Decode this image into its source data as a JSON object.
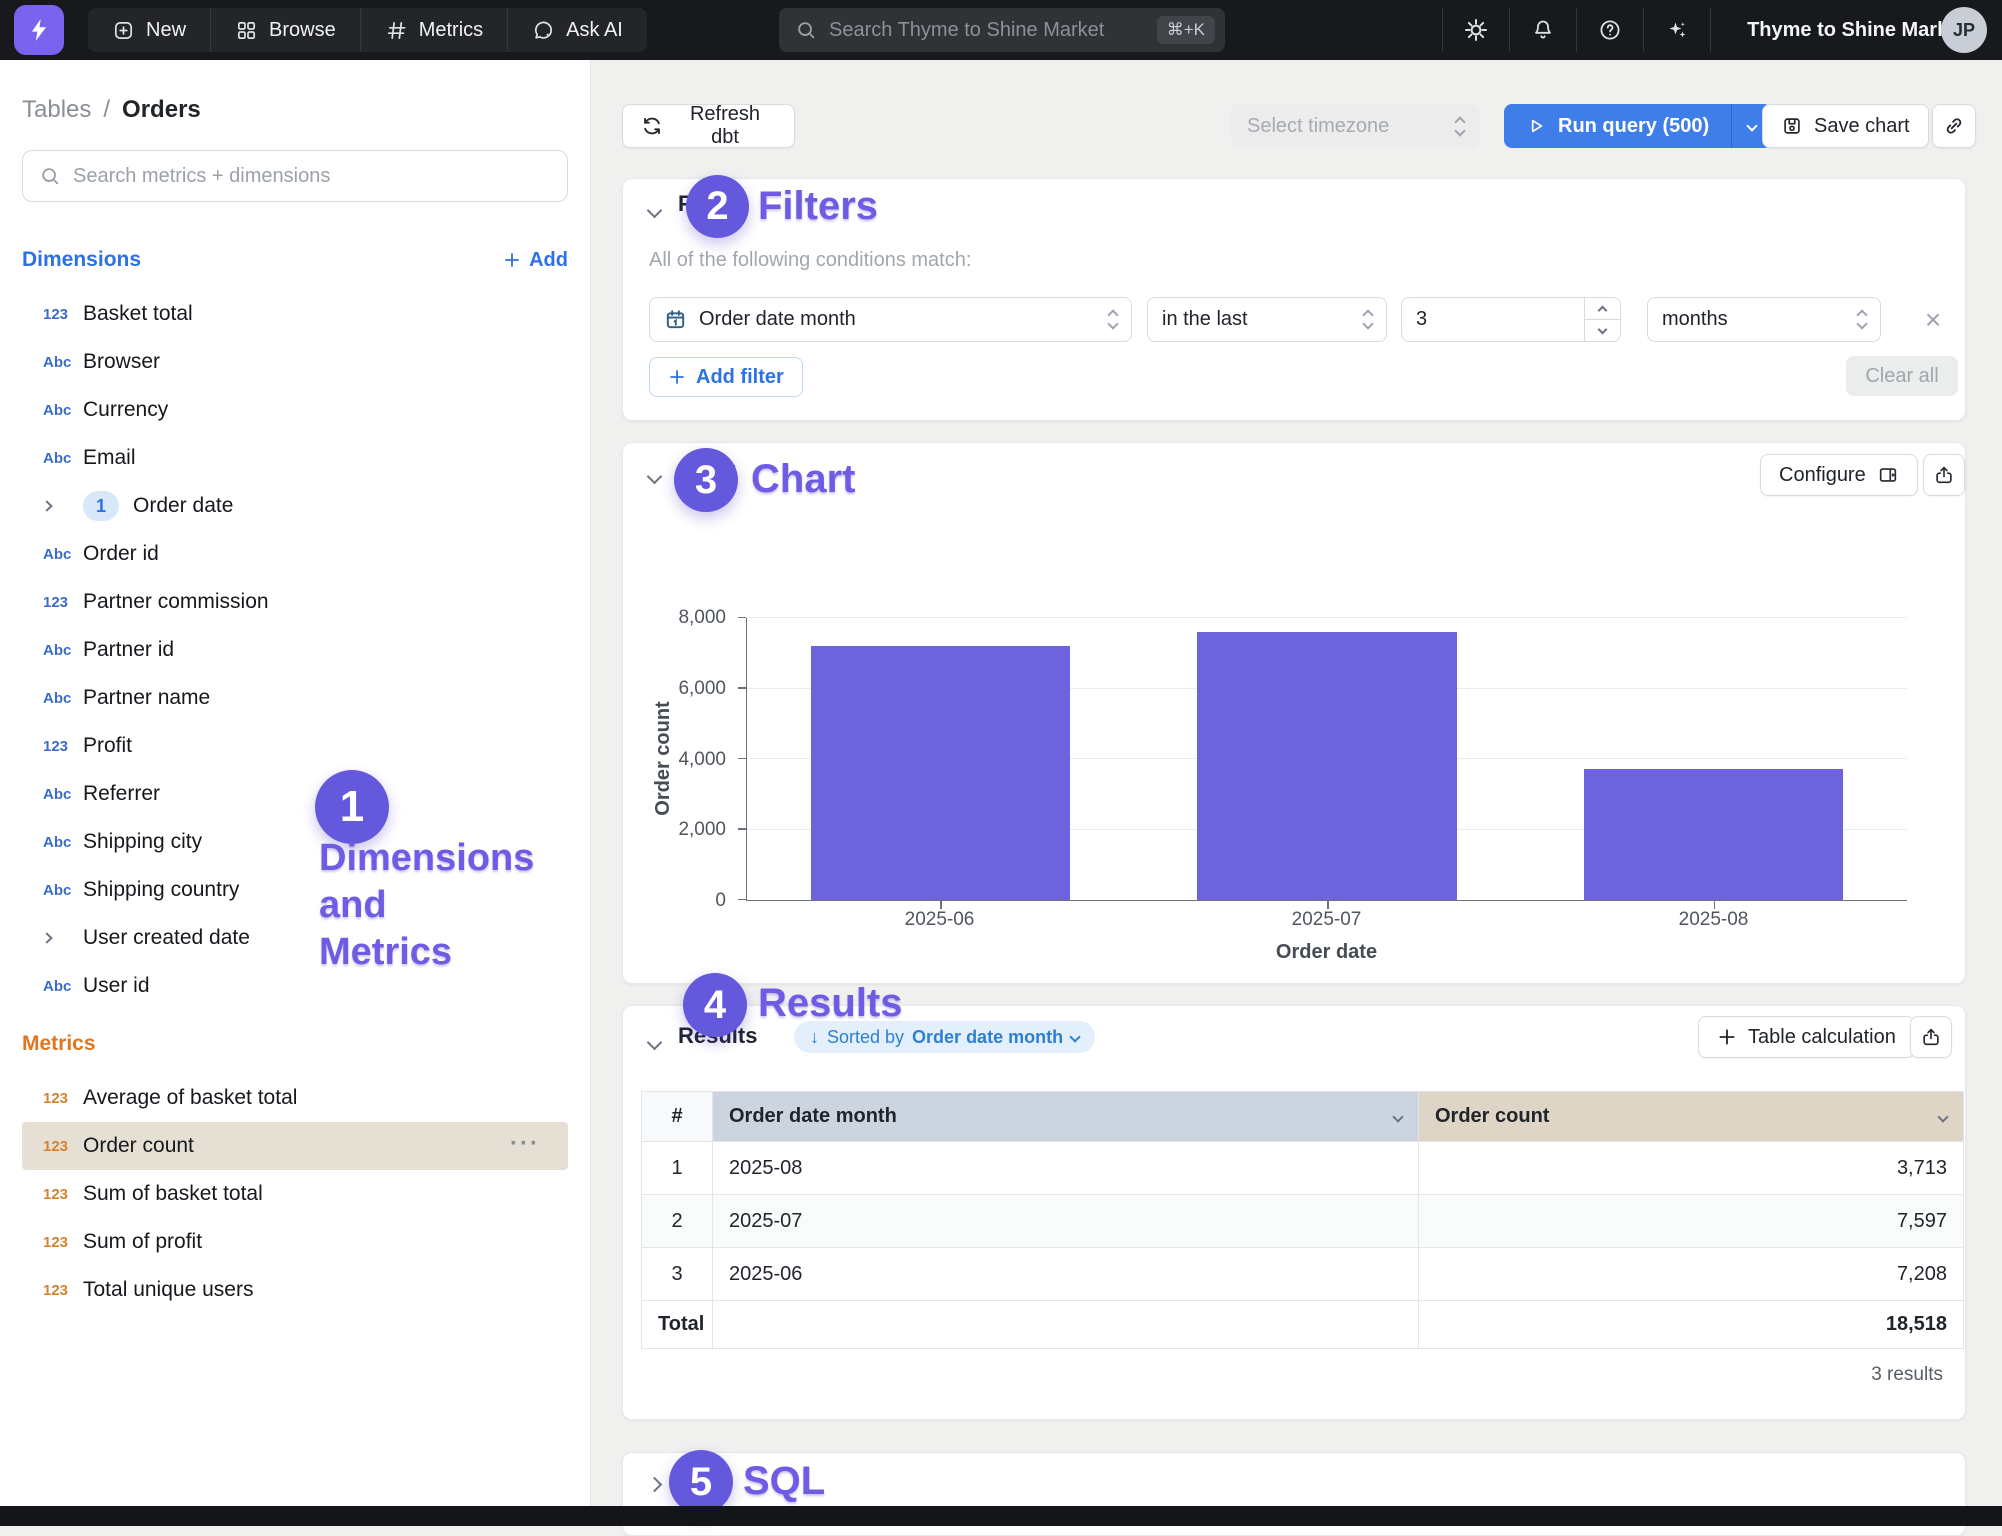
{
  "navbar": {
    "nav_items": [
      {
        "label": "New"
      },
      {
        "label": "Browse"
      },
      {
        "label": "Metrics"
      },
      {
        "label": "Ask AI"
      }
    ],
    "search_placeholder": "Search Thyme to Shine Market",
    "search_shortcut": "⌘+K",
    "workspace": "Thyme to Shine Market",
    "avatar_initials": "JP"
  },
  "sidebar": {
    "breadcrumb": {
      "parent": "Tables",
      "separator": "/",
      "current": "Orders"
    },
    "search_placeholder": "Search metrics + dimensions",
    "icons": {
      "number": "123",
      "string": "Abc"
    },
    "dimensions": {
      "title": "Dimensions",
      "add_label": "Add",
      "items": [
        {
          "type": "number",
          "label": "Basket total"
        },
        {
          "type": "string",
          "label": "Browser"
        },
        {
          "type": "string",
          "label": "Currency"
        },
        {
          "type": "string",
          "label": "Email"
        },
        {
          "type": "expand",
          "badge": "1",
          "label": "Order date"
        },
        {
          "type": "string",
          "label": "Order id"
        },
        {
          "type": "number",
          "label": "Partner commission"
        },
        {
          "type": "string",
          "label": "Partner id"
        },
        {
          "type": "string",
          "label": "Partner name"
        },
        {
          "type": "number",
          "label": "Profit"
        },
        {
          "type": "string",
          "label": "Referrer"
        },
        {
          "type": "string",
          "label": "Shipping city"
        },
        {
          "type": "string",
          "label": "Shipping country"
        },
        {
          "type": "expand",
          "label": "User created date"
        },
        {
          "type": "string",
          "label": "User id"
        }
      ]
    },
    "metrics": {
      "title": "Metrics",
      "items": [
        {
          "type": "number",
          "label": "Average of basket total"
        },
        {
          "type": "number",
          "label": "Order count",
          "selected": true,
          "menu": "···"
        },
        {
          "type": "number",
          "label": "Sum of basket total"
        },
        {
          "type": "number",
          "label": "Sum of profit"
        },
        {
          "type": "number",
          "label": "Total unique users"
        }
      ]
    }
  },
  "toolbar": {
    "refresh_label": "Refresh dbt",
    "timezone_placeholder": "Select timezone",
    "run_label": "Run query (500)",
    "save_label": "Save chart"
  },
  "annotations": {
    "one": {
      "number": "1",
      "line1": "Dimensions",
      "line2": "and",
      "line3": "Metrics"
    },
    "two": {
      "number": "2",
      "label": "Filters"
    },
    "three": {
      "number": "3",
      "label": "Chart"
    },
    "four": {
      "number": "4",
      "label": "Results"
    },
    "five": {
      "number": "5",
      "label": "SQL"
    }
  },
  "filters": {
    "title": "Filters",
    "subtitle": "All of the following conditions match:",
    "field_value": "Order date month",
    "operator_value": "in the last",
    "amount_value": "3",
    "unit_value": "months",
    "add_filter_label": "Add filter",
    "clear_all_label": "Clear all"
  },
  "chart_section": {
    "title": "Chart",
    "configure_label": "Configure"
  },
  "chart_data": {
    "type": "bar",
    "title": "",
    "categories": [
      "2025-06",
      "2025-07",
      "2025-08"
    ],
    "values": [
      7208,
      7597,
      3713
    ],
    "series_name": "Order count",
    "xlabel": "Order date",
    "ylabel": "Order count",
    "ylim": [
      0,
      8000
    ],
    "yticks": [
      0,
      2000,
      4000,
      6000,
      8000
    ],
    "bar_color": "#6d64dd",
    "grid": true,
    "legend": false
  },
  "results": {
    "title": "Results",
    "sort_chip": {
      "arrow": "↓",
      "prefix": "Sorted by",
      "field": "Order date month"
    },
    "table_calculation_label": "Table calculation",
    "table": {
      "columns": [
        "#",
        "Order date month",
        "Order count"
      ],
      "rows": [
        {
          "index": "1",
          "month": "2025-08",
          "count": "3,713"
        },
        {
          "index": "2",
          "month": "2025-07",
          "count": "7,597"
        },
        {
          "index": "3",
          "month": "2025-06",
          "count": "7,208"
        }
      ],
      "total_label": "Total",
      "total_value": "18,518"
    },
    "results_count": "3 results"
  },
  "sql": {
    "title": "SQL"
  }
}
